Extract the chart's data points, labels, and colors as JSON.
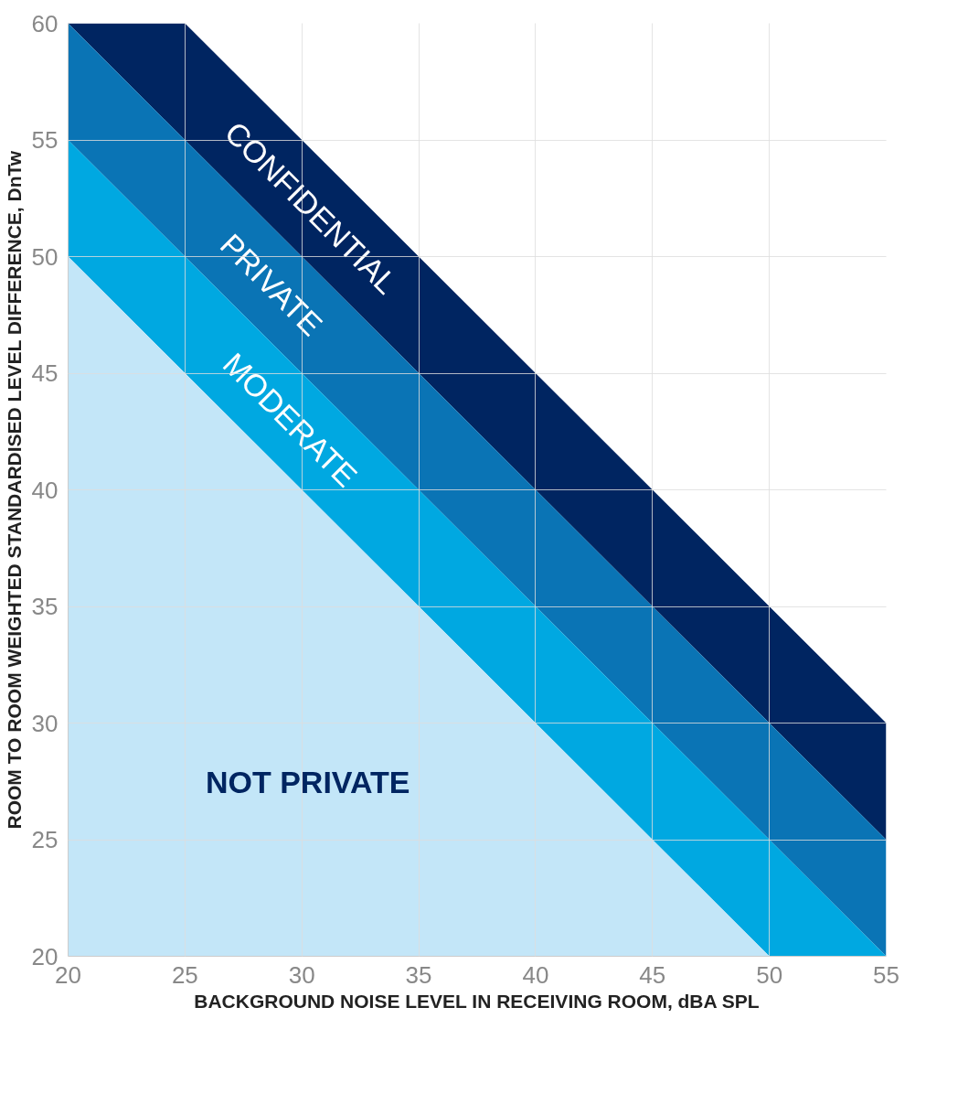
{
  "chart_data": {
    "type": "area",
    "xlabel": "BACKGROUND NOISE LEVEL IN RECEIVING ROOM, dBA SPL",
    "ylabel": "ROOM TO ROOM WEIGHTED STANDARDISED LEVEL DIFFERENCE, DnTw",
    "x": [
      20,
      25,
      30,
      35,
      40,
      45,
      50,
      55
    ],
    "series": [
      {
        "name": "CONFIDENTIAL",
        "color": "#002561",
        "values": [
          60,
          60,
          55,
          50,
          45,
          40,
          35,
          30
        ]
      },
      {
        "name": "PRIVATE",
        "color": "#0a74b5",
        "values": [
          60,
          55,
          50,
          45,
          40,
          35,
          30,
          25
        ]
      },
      {
        "name": "MODERATE",
        "color": "#00a8e1",
        "values": [
          55,
          50,
          45,
          40,
          35,
          30,
          25,
          20
        ]
      },
      {
        "name": "NOT PRIVATE",
        "color": "#c3e6f8",
        "values": [
          50,
          45,
          40,
          35,
          30,
          25,
          20,
          20
        ]
      }
    ],
    "xlim": [
      20,
      55
    ],
    "ylim": [
      20,
      60
    ],
    "xticks": [
      20,
      25,
      30,
      35,
      40,
      45,
      50,
      55
    ],
    "yticks": [
      20,
      25,
      30,
      35,
      40,
      45,
      50,
      55,
      60
    ],
    "grid": true,
    "marker": "none"
  }
}
